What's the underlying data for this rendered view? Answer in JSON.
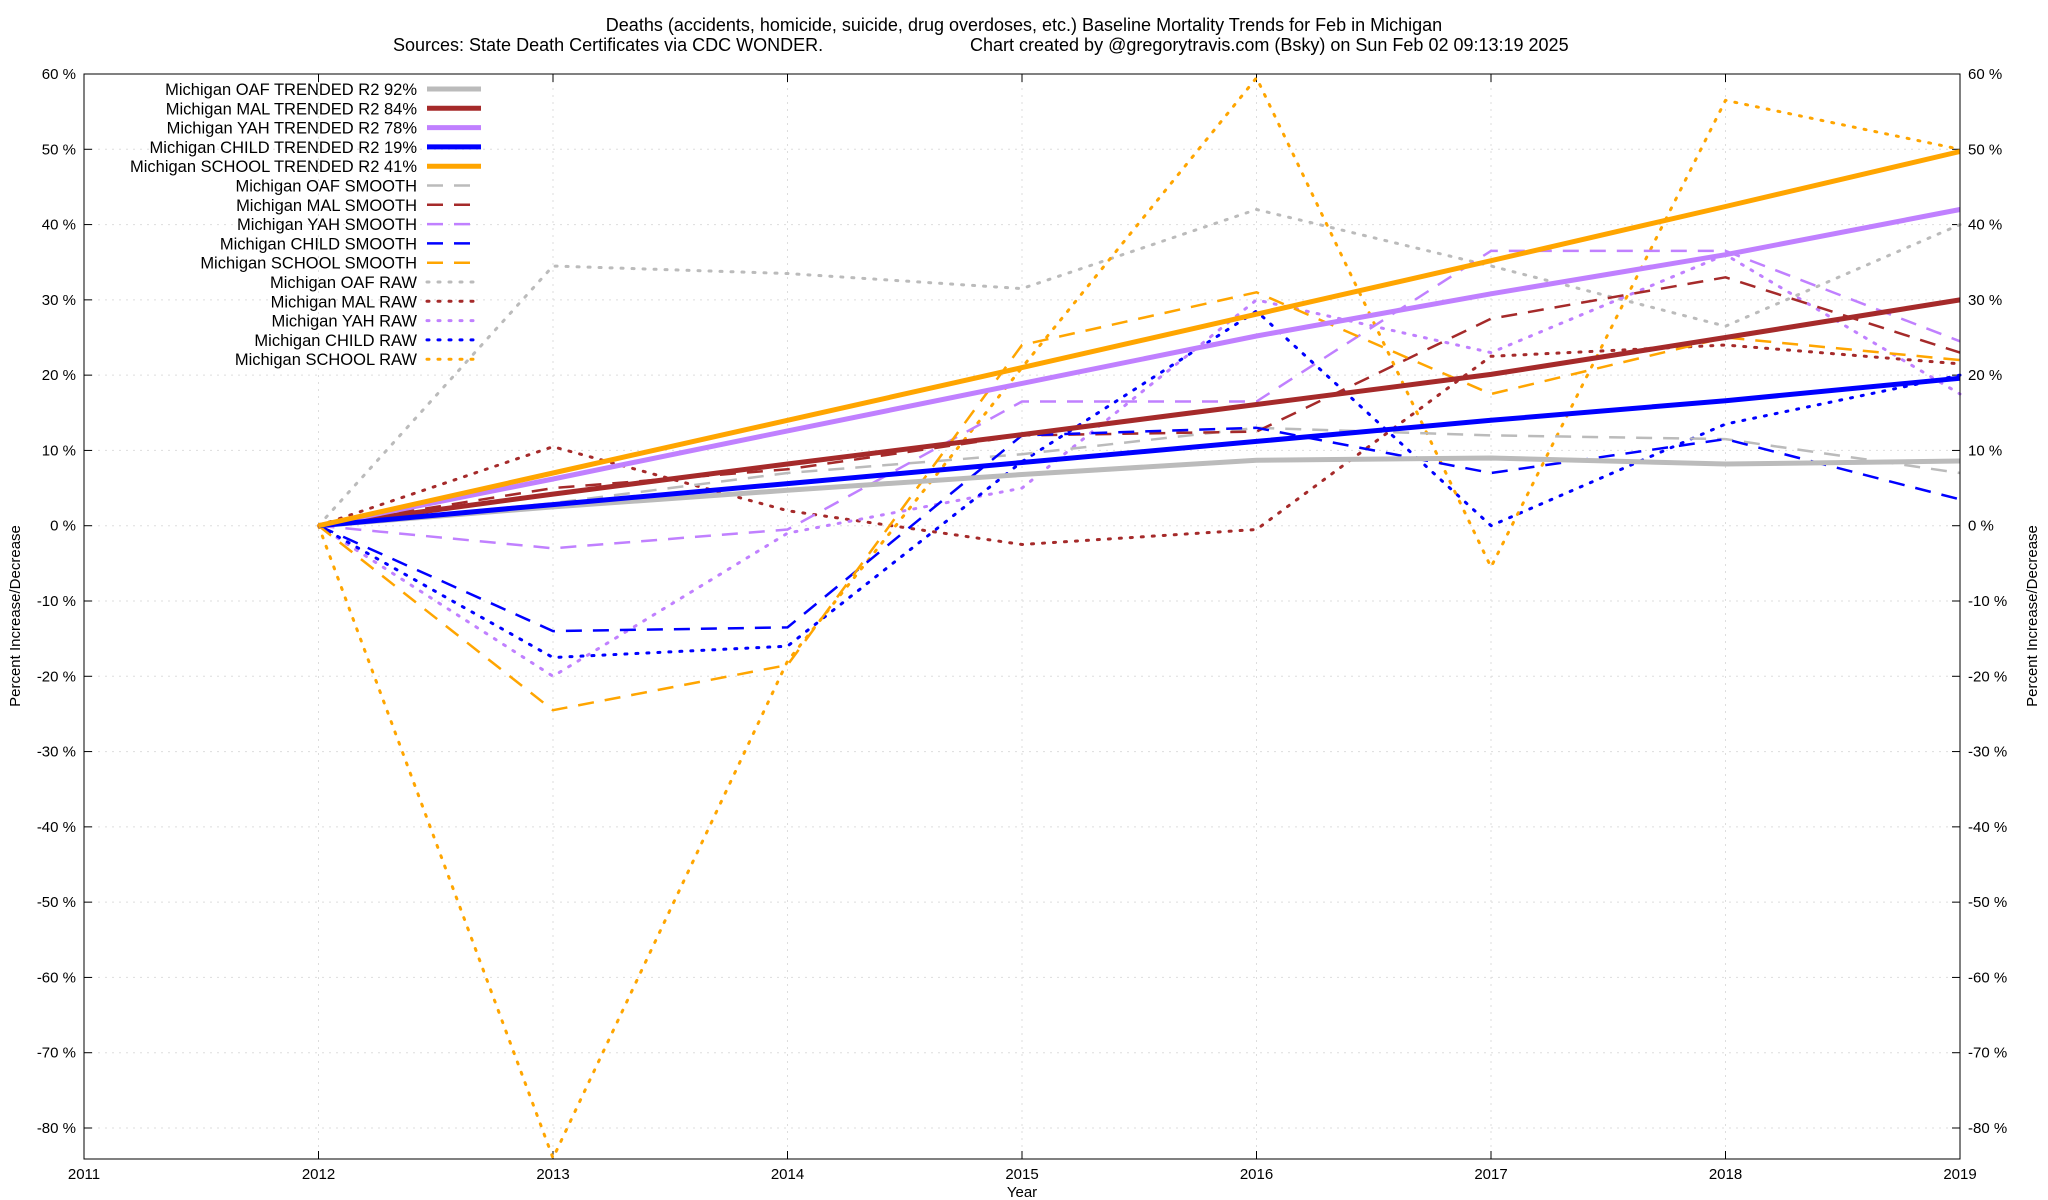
{
  "chart_data": {
    "type": "line",
    "title": "Deaths (accidents, homicide, suicide, drug overdoses, etc.)  Baseline Mortality Trends for Feb in Michigan",
    "subtitle_left": "Sources: State Death Certificates via CDC WONDER.",
    "subtitle_right": "Chart created by @gregorytravis.com (Bsky) on Sun Feb 02 09:13:19 2025",
    "xlabel": "Year",
    "ylabel": "Percent Increase/Decrease",
    "y2label": "Percent Increase/Decrease",
    "xlim": [
      2011,
      2019
    ],
    "ylim": [
      -85,
      60
    ],
    "grid": true,
    "legend_position": "top-left",
    "x_ticks": [
      {
        "value": 2011,
        "label": "2011"
      },
      {
        "value": 2012,
        "label": "2012"
      },
      {
        "value": 2013,
        "label": "2013"
      },
      {
        "value": 2014,
        "label": "2014"
      },
      {
        "value": 2015,
        "label": "2015"
      },
      {
        "value": 2016,
        "label": "2016"
      },
      {
        "value": 2017,
        "label": "2017"
      },
      {
        "value": 2018,
        "label": "2018"
      },
      {
        "value": 2019,
        "label": "2019"
      }
    ],
    "y_ticks": [
      {
        "value": 60,
        "label": "60 %"
      },
      {
        "value": 50,
        "label": "50 %"
      },
      {
        "value": 40,
        "label": "40 %"
      },
      {
        "value": 30,
        "label": "30 %"
      },
      {
        "value": 20,
        "label": "20 %"
      },
      {
        "value": 10,
        "label": "10 %"
      },
      {
        "value": 0,
        "label": "0 %"
      },
      {
        "value": -10,
        "label": "-10 %"
      },
      {
        "value": -20,
        "label": "-20 %"
      },
      {
        "value": -30,
        "label": "-30 %"
      },
      {
        "value": -40,
        "label": "-40 %"
      },
      {
        "value": -50,
        "label": "-50 %"
      },
      {
        "value": -60,
        "label": "-60 %"
      },
      {
        "value": -70,
        "label": "-70 %"
      },
      {
        "value": -80,
        "label": "-80 %"
      }
    ],
    "x": [
      2012,
      2013,
      2014,
      2015,
      2016,
      2017,
      2018,
      2019
    ],
    "series": [
      {
        "name": "Michigan OAF TRENDED R2  92%",
        "style": "trended",
        "color": "#bbbbbb",
        "values": [
          0,
          2.5,
          4.7,
          6.8,
          8.7,
          9.0,
          8.2,
          8.6
        ]
      },
      {
        "name": "Michigan MAL TRENDED R2  84%",
        "style": "trended",
        "color": "#a52a2a",
        "values": [
          0,
          4.2,
          8.2,
          12.1,
          16.1,
          20.1,
          25.0,
          30.0
        ]
      },
      {
        "name": "Michigan YAH TRENDED R2  78%",
        "style": "trended",
        "color": "#c080ff",
        "values": [
          0,
          6.2,
          12.6,
          18.9,
          25.2,
          30.8,
          36.0,
          42.0
        ]
      },
      {
        "name": "Michigan CHILD TRENDED R2  19%",
        "style": "trended",
        "color": "#0000ff",
        "values": [
          0,
          2.8,
          5.6,
          8.4,
          11.2,
          14.0,
          16.6,
          19.6
        ]
      },
      {
        "name": "Michigan SCHOOL TRENDED R2  41%",
        "style": "trended",
        "color": "#ffa500",
        "values": [
          0,
          7.0,
          14.0,
          21.0,
          28.1,
          35.2,
          42.4,
          49.7
        ]
      },
      {
        "name": "Michigan OAF SMOOTH",
        "style": "smooth",
        "color": "#bbbbbb",
        "values": [
          0,
          3.0,
          7.0,
          9.5,
          13.0,
          12.0,
          11.5,
          7.0
        ]
      },
      {
        "name": "Michigan MAL SMOOTH",
        "style": "smooth",
        "color": "#a52a2a",
        "values": [
          0,
          5.0,
          7.5,
          12.0,
          12.5,
          27.5,
          33.0,
          23.0
        ]
      },
      {
        "name": "Michigan YAH SMOOTH",
        "style": "smooth",
        "color": "#c080ff",
        "values": [
          0,
          -3.0,
          -0.5,
          16.5,
          16.5,
          36.5,
          36.5,
          24.5
        ]
      },
      {
        "name": "Michigan CHILD SMOOTH",
        "style": "smooth",
        "color": "#0000ff",
        "values": [
          0,
          -14.0,
          -13.5,
          12.0,
          13.0,
          7.0,
          11.5,
          3.5
        ]
      },
      {
        "name": "Michigan SCHOOL SMOOTH",
        "style": "smooth",
        "color": "#ffa500",
        "values": [
          0,
          -24.5,
          -18.5,
          24.0,
          31.0,
          17.5,
          25.0,
          22.0
        ]
      },
      {
        "name": "Michigan OAF RAW",
        "style": "raw",
        "color": "#bbbbbb",
        "values": [
          0,
          34.5,
          33.5,
          31.5,
          42.0,
          34.5,
          26.5,
          40.0
        ]
      },
      {
        "name": "Michigan MAL RAW",
        "style": "raw",
        "color": "#a52a2a",
        "values": [
          0,
          10.5,
          2.0,
          -2.5,
          -0.5,
          22.5,
          24.0,
          21.5
        ]
      },
      {
        "name": "Michigan YAH RAW",
        "style": "raw",
        "color": "#c080ff",
        "values": [
          0,
          -20.0,
          -1.0,
          5.0,
          30.0,
          23.0,
          36.0,
          17.5
        ]
      },
      {
        "name": "Michigan CHILD RAW",
        "style": "raw",
        "color": "#0000ff",
        "values": [
          0,
          -17.5,
          -16.0,
          8.5,
          28.5,
          0.0,
          13.5,
          20.0
        ]
      },
      {
        "name": "Michigan SCHOOL RAW",
        "style": "raw",
        "color": "#ffa500",
        "values": [
          0,
          -84.0,
          -18.0,
          21.0,
          59.5,
          -5.5,
          56.5,
          50.0
        ]
      }
    ]
  }
}
